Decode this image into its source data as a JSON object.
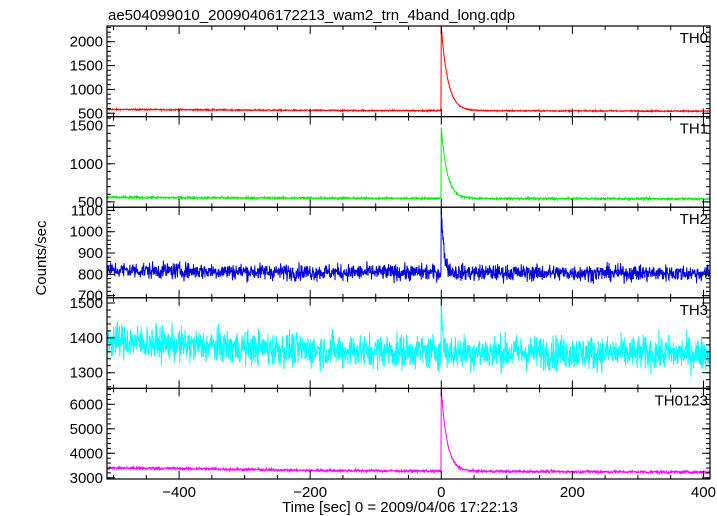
{
  "chart_data": {
    "type": "line",
    "title": "ae504099010_20090406172213_wam2_trn_4band_long.qdp",
    "xlabel": "Time [sec] 0 = 2009/04/06 17:22:13",
    "ylabel": "Counts/sec",
    "xlim": [
      -510,
      410
    ],
    "xticks": [
      -400,
      -200,
      0,
      200,
      400
    ],
    "x_tick_labels": [
      "−400",
      "−200",
      "0",
      "200",
      "400"
    ],
    "grid": false,
    "panels": [
      {
        "name": "TH0",
        "color": "#ff0000",
        "ylim": [
          430,
          2330
        ],
        "yticks": [
          500,
          1000,
          1500,
          2000
        ],
        "ytick_labels": [
          "500",
          "1000",
          "1500",
          "2000"
        ],
        "baseline_points": [
          [
            -510,
            580
          ],
          [
            -400,
            575
          ],
          [
            -200,
            560
          ],
          [
            -10,
            555
          ],
          [
            400,
            545
          ]
        ],
        "noise": 20,
        "peak": {
          "x": 0,
          "y": 2330
        },
        "decay": 10
      },
      {
        "name": "TH1",
        "color": "#00ee00",
        "ylim": [
          430,
          1620
        ],
        "yticks": [
          500,
          1000,
          1500
        ],
        "ytick_labels": [
          "500",
          "1000",
          "1500"
        ],
        "baseline_points": [
          [
            -510,
            560
          ],
          [
            -400,
            555
          ],
          [
            -200,
            550
          ],
          [
            -10,
            545
          ],
          [
            400,
            540
          ]
        ],
        "noise": 20,
        "peak": {
          "x": 0,
          "y": 1480
        },
        "decay": 9
      },
      {
        "name": "TH2",
        "color": "#0000dd",
        "ylim": [
          690,
          1115
        ],
        "yticks": [
          700,
          800,
          900,
          1000,
          1100
        ],
        "ytick_labels": [
          "700",
          "800",
          "900",
          "1000",
          "1100"
        ],
        "baseline_points": [
          [
            -510,
            820
          ],
          [
            -200,
            810
          ],
          [
            400,
            805
          ]
        ],
        "noise": 55,
        "peak": {
          "x": 0,
          "y": 1110
        },
        "decay": 4
      },
      {
        "name": "TH3",
        "color": "#00ffff",
        "ylim": [
          1255,
          1515
        ],
        "yticks": [
          1300,
          1400,
          1500
        ],
        "ytick_labels": [
          "1300",
          "1400",
          "1500"
        ],
        "baseline_points": [
          [
            -510,
            1395
          ],
          [
            -400,
            1380
          ],
          [
            -200,
            1365
          ],
          [
            0,
            1360
          ],
          [
            400,
            1355
          ]
        ],
        "noise": 70,
        "peak": {
          "x": 0,
          "y": 1515
        },
        "decay": 2
      },
      {
        "name": "TH0123",
        "color": "#ff00ff",
        "ylim": [
          2950,
          6650
        ],
        "yticks": [
          3000,
          4000,
          5000,
          6000
        ],
        "ytick_labels": [
          "3000",
          "4000",
          "5000",
          "6000"
        ],
        "baseline_points": [
          [
            -510,
            3400
          ],
          [
            -400,
            3380
          ],
          [
            -200,
            3300
          ],
          [
            0,
            3270
          ],
          [
            400,
            3230
          ]
        ],
        "noise": 80,
        "peak": {
          "x": 0,
          "y": 6600
        },
        "decay": 9
      }
    ]
  }
}
